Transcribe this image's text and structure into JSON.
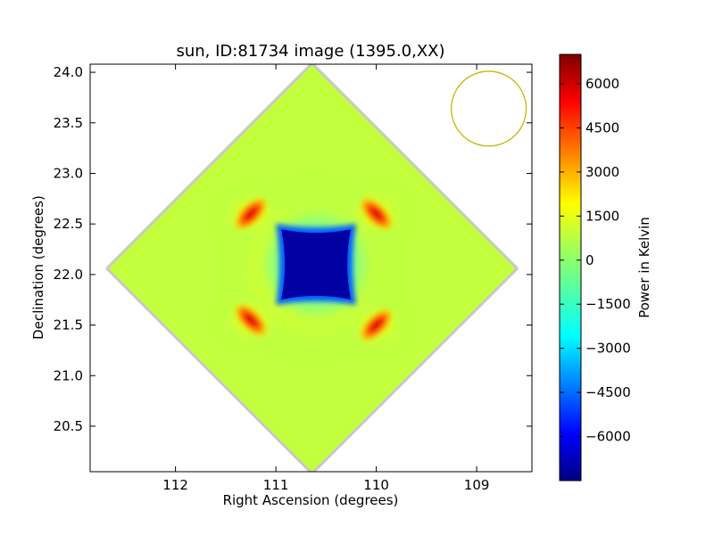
{
  "chart_data": {
    "type": "heatmap",
    "title": "sun, ID:81734 image (1395.0,XX)",
    "xlabel": "Right Ascension (degrees)",
    "ylabel": "Declination (degrees)",
    "colorbar_label": "Power in Kelvin",
    "xlim": [
      112.85,
      108.45
    ],
    "ylim": [
      20.05,
      24.08
    ],
    "x_ticks": [
      112,
      111,
      110,
      109
    ],
    "y_ticks": [
      20.5,
      21.0,
      21.5,
      22.0,
      22.5,
      23.0,
      23.5,
      24.0
    ],
    "x_tick_labels": [
      "112",
      "111",
      "110",
      "109"
    ],
    "y_tick_labels": [
      "20.5",
      "21.0",
      "21.5",
      "22.0",
      "22.5",
      "23.0",
      "23.5",
      "24.0"
    ],
    "colorbar_range": [
      -7500,
      7000
    ],
    "colorbar_ticks": [
      6000,
      4500,
      3000,
      1500,
      0,
      -1500,
      -3000,
      -4500,
      -6000
    ],
    "colorbar_tick_labels": [
      "6000",
      "4500",
      "3000",
      "1500",
      "0",
      "−1500",
      "−3000",
      "−4500",
      "−6000"
    ],
    "colormap": "jet",
    "image_center": [
      110.64,
      22.06
    ],
    "image_halfwidth_deg": 2.01,
    "background_value": 700,
    "hot_spots": [
      {
        "x": 111.25,
        "y": 22.6,
        "value": 5500
      },
      {
        "x": 110.0,
        "y": 22.6,
        "value": 5500
      },
      {
        "x": 111.25,
        "y": 21.55,
        "value": 5500
      },
      {
        "x": 110.0,
        "y": 21.5,
        "value": 5500
      }
    ],
    "cold_region": {
      "x_range": [
        111.0,
        110.2
      ],
      "y_range": [
        21.7,
        22.5
      ],
      "value": -7000
    },
    "beam_circle": {
      "x": 108.88,
      "y": 23.64,
      "radius_deg": 0.37,
      "color": "#c8b400"
    }
  }
}
